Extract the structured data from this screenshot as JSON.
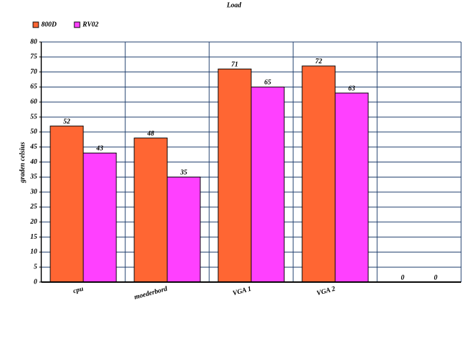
{
  "chart_data": {
    "type": "bar",
    "title": "Load",
    "y_label": "graden celsius",
    "categories": [
      "cpu",
      "moederbord",
      "VGA 1",
      "VGA 2",
      null
    ],
    "series": [
      {
        "name": "800D",
        "color": "#ff6633",
        "values": [
          52,
          48,
          71,
          72,
          0
        ]
      },
      {
        "name": "RV02",
        "color": "#ff40ff",
        "values": [
          43,
          35,
          65,
          63,
          0
        ]
      }
    ],
    "ylim": [
      0,
      80
    ],
    "yticks": [
      0,
      5,
      10,
      15,
      20,
      25,
      30,
      35,
      40,
      45,
      50,
      55,
      60,
      65,
      70,
      75,
      80
    ],
    "grid": true,
    "legend": "top-left",
    "grid_color": "#1a3a6a"
  }
}
